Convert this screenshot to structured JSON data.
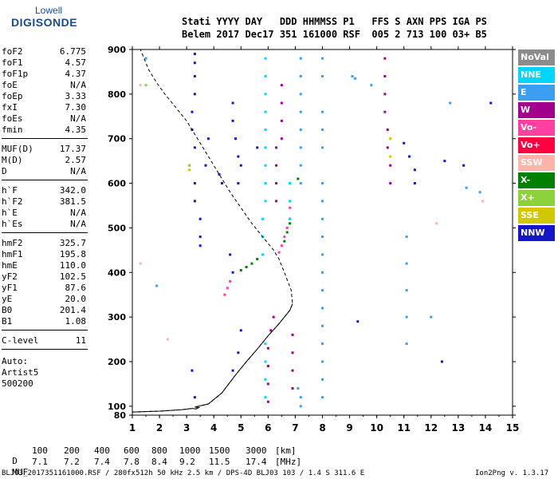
{
  "logo": {
    "line1": "Lowell",
    "line2": "DIGISONDE"
  },
  "header": {
    "line1": "Stati YYYY DAY   DDD HHMMSS P1   FFS S AXN PPS IGA PS",
    "line2": "Belem 2017 Dec17 351 161000 RSF  005 2 713 100 03+ B5"
  },
  "params": {
    "group1": [
      {
        "k": "foF2",
        "v": "6.775"
      },
      {
        "k": "foF1",
        "v": "4.57"
      },
      {
        "k": "foF1p",
        "v": "4.37"
      },
      {
        "k": "foE",
        "v": "N/A"
      },
      {
        "k": "foEp",
        "v": "3.33"
      },
      {
        "k": "fxI",
        "v": "7.30"
      },
      {
        "k": "foEs",
        "v": "N/A"
      },
      {
        "k": "fmin",
        "v": "4.35"
      }
    ],
    "group2": [
      {
        "k": "MUF(D)",
        "v": "17.37"
      },
      {
        "k": "M(D)",
        "v": "2.57"
      },
      {
        "k": "D",
        "v": "N/A"
      }
    ],
    "group3": [
      {
        "k": "h`F",
        "v": "342.0"
      },
      {
        "k": "h`F2",
        "v": "381.5"
      },
      {
        "k": "h`E",
        "v": "N/A"
      },
      {
        "k": "h`Es",
        "v": "N/A"
      }
    ],
    "group4": [
      {
        "k": "hmF2",
        "v": "325.7"
      },
      {
        "k": "hmF1",
        "v": "195.8"
      },
      {
        "k": "hmE",
        "v": "110.0"
      },
      {
        "k": "yF2",
        "v": "102.5"
      },
      {
        "k": "yF1",
        "v": "87.6"
      },
      {
        "k": "yE",
        "v": "20.0"
      },
      {
        "k": "B0",
        "v": "201.4"
      },
      {
        "k": "B1",
        "v": "1.08"
      }
    ],
    "group5": [
      {
        "k": "C-level",
        "v": "11"
      }
    ],
    "auto": [
      "Auto:",
      "Artist5",
      "500200"
    ]
  },
  "legend": [
    {
      "label": "NoVal",
      "color": "#8c8c8c"
    },
    {
      "label": "NNE",
      "color": "#00d4ff"
    },
    {
      "label": "E",
      "color": "#3a9ff0"
    },
    {
      "label": "W",
      "color": "#a0008c"
    },
    {
      "label": "Vo-",
      "color": "#ff40a0"
    },
    {
      "label": "Vo+",
      "color": "#ff0040"
    },
    {
      "label": "SSW",
      "color": "#ffb4a8"
    },
    {
      "label": "X-",
      "color": "#008000"
    },
    {
      "label": "X+",
      "color": "#8cd23c"
    },
    {
      "label": "SSE",
      "color": "#d2c800"
    },
    {
      "label": "NNW",
      "color": "#1414c8"
    }
  ],
  "chart_data": {
    "type": "scatter",
    "xlim": [
      1,
      15
    ],
    "ylim": [
      80,
      900
    ],
    "xticks": [
      "1",
      "2",
      "3",
      "4",
      "5",
      "6",
      "7",
      "8",
      "9",
      "10",
      "11",
      "12",
      "13",
      "14",
      "15"
    ],
    "yticks": [
      "80",
      "100",
      "200",
      "300",
      "400",
      "500",
      "600",
      "700",
      "800",
      "900"
    ],
    "series": [
      {
        "name": "W",
        "color": "#a0008c",
        "points": [
          [
            6.0,
            110
          ],
          [
            6.0,
            150
          ],
          [
            6.0,
            190
          ],
          [
            6.0,
            230
          ],
          [
            6.1,
            270
          ],
          [
            6.2,
            300
          ],
          [
            6.3,
            560
          ],
          [
            6.3,
            600
          ],
          [
            6.3,
            640
          ],
          [
            6.3,
            680
          ],
          [
            6.5,
            700
          ],
          [
            6.5,
            740
          ],
          [
            6.5,
            780
          ],
          [
            6.5,
            820
          ],
          [
            6.9,
            140
          ],
          [
            6.9,
            180
          ],
          [
            6.9,
            220
          ],
          [
            6.9,
            260
          ],
          [
            10.3,
            880
          ],
          [
            10.3,
            840
          ],
          [
            10.3,
            800
          ],
          [
            10.3,
            760
          ],
          [
            10.4,
            720
          ],
          [
            10.4,
            680
          ],
          [
            10.5,
            640
          ],
          [
            10.5,
            600
          ]
        ]
      },
      {
        "name": "Vo-",
        "color": "#ff40a0",
        "points": [
          [
            4.4,
            350
          ],
          [
            4.5,
            365
          ],
          [
            4.6,
            380
          ],
          [
            6.4,
            445
          ],
          [
            6.5,
            460
          ],
          [
            6.6,
            480
          ],
          [
            6.7,
            500
          ],
          [
            6.8,
            520
          ],
          [
            6.8,
            545
          ]
        ]
      },
      {
        "name": "X-",
        "color": "#008000",
        "points": [
          [
            5.0,
            405
          ],
          [
            5.2,
            412
          ],
          [
            5.4,
            420
          ],
          [
            5.6,
            430
          ],
          [
            6.6,
            470
          ],
          [
            6.7,
            490
          ],
          [
            6.8,
            510
          ],
          [
            7.1,
            610
          ]
        ]
      },
      {
        "name": "NNE",
        "color": "#00d4ff",
        "points": [
          [
            5.9,
            880
          ],
          [
            5.9,
            840
          ],
          [
            5.9,
            800
          ],
          [
            5.9,
            760
          ],
          [
            5.9,
            720
          ],
          [
            5.9,
            680
          ],
          [
            5.9,
            640
          ],
          [
            5.9,
            600
          ],
          [
            5.9,
            560
          ],
          [
            5.8,
            520
          ],
          [
            5.8,
            480
          ],
          [
            5.8,
            440
          ],
          [
            5.9,
            240
          ],
          [
            5.9,
            200
          ],
          [
            5.9,
            160
          ],
          [
            5.9,
            120
          ],
          [
            6.8,
            600
          ],
          [
            6.8,
            560
          ],
          [
            6.8,
            520
          ]
        ]
      },
      {
        "name": "E",
        "color": "#3a9ff0",
        "points": [
          [
            7.2,
            880
          ],
          [
            7.2,
            840
          ],
          [
            7.2,
            800
          ],
          [
            7.2,
            760
          ],
          [
            7.2,
            720
          ],
          [
            7.2,
            680
          ],
          [
            7.2,
            640
          ],
          [
            7.2,
            600
          ],
          [
            7.2,
            100
          ],
          [
            7.2,
            120
          ],
          [
            7.1,
            140
          ],
          [
            8.0,
            880
          ],
          [
            8.0,
            840
          ],
          [
            8.0,
            760
          ],
          [
            8.0,
            720
          ],
          [
            8.0,
            680
          ],
          [
            8.0,
            600
          ],
          [
            8.0,
            560
          ],
          [
            8.0,
            520
          ],
          [
            8.0,
            480
          ],
          [
            8.0,
            440
          ],
          [
            8.0,
            400
          ],
          [
            8.0,
            360
          ],
          [
            8.0,
            320
          ],
          [
            8.0,
            280
          ],
          [
            8.0,
            240
          ],
          [
            8.0,
            200
          ],
          [
            8.0,
            160
          ],
          [
            8.0,
            120
          ],
          [
            9.1,
            840
          ],
          [
            9.2,
            835
          ],
          [
            9.8,
            820
          ],
          [
            11.1,
            240
          ],
          [
            11.1,
            300
          ],
          [
            11.1,
            360
          ],
          [
            11.1,
            420
          ],
          [
            11.1,
            480
          ],
          [
            12.7,
            780
          ],
          [
            13.3,
            590
          ],
          [
            13.8,
            580
          ],
          [
            12.0,
            300
          ],
          [
            1.5,
            880
          ],
          [
            1.9,
            370
          ]
        ]
      },
      {
        "name": "NNW",
        "color": "#1414c8",
        "points": [
          [
            3.3,
            890
          ],
          [
            3.3,
            870
          ],
          [
            3.3,
            840
          ],
          [
            3.3,
            800
          ],
          [
            3.2,
            760
          ],
          [
            3.2,
            720
          ],
          [
            3.3,
            680
          ],
          [
            3.3,
            600
          ],
          [
            3.3,
            560
          ],
          [
            3.5,
            520
          ],
          [
            3.5,
            480
          ],
          [
            3.5,
            460
          ],
          [
            3.7,
            640
          ],
          [
            3.8,
            700
          ],
          [
            4.2,
            620
          ],
          [
            4.3,
            600
          ],
          [
            4.7,
            780
          ],
          [
            4.7,
            740
          ],
          [
            4.8,
            700
          ],
          [
            4.9,
            660
          ],
          [
            5.0,
            640
          ],
          [
            4.9,
            600
          ],
          [
            5.6,
            680
          ],
          [
            4.7,
            400
          ],
          [
            4.6,
            440
          ],
          [
            5.0,
            270
          ],
          [
            4.9,
            220
          ],
          [
            4.7,
            180
          ],
          [
            3.2,
            180
          ],
          [
            3.3,
            120
          ],
          [
            9.3,
            290
          ],
          [
            11.0,
            690
          ],
          [
            11.2,
            660
          ],
          [
            11.4,
            630
          ],
          [
            11.4,
            600
          ],
          [
            12.5,
            650
          ],
          [
            12.4,
            200
          ],
          [
            14.2,
            780
          ],
          [
            13.2,
            640
          ]
        ]
      },
      {
        "name": "SSW",
        "color": "#ffb4a8",
        "points": [
          [
            1.3,
            820
          ],
          [
            1.3,
            420
          ],
          [
            2.3,
            250
          ],
          [
            12.2,
            510
          ],
          [
            13.9,
            560
          ]
        ]
      },
      {
        "name": "X+",
        "color": "#8cd23c",
        "points": [
          [
            1.5,
            820
          ],
          [
            3.1,
            640
          ]
        ]
      },
      {
        "name": "SSE",
        "color": "#d2c800",
        "points": [
          [
            10.5,
            700
          ],
          [
            10.5,
            660
          ],
          [
            3.1,
            630
          ]
        ]
      }
    ],
    "ionogram_trace": [
      [
        1.0,
        87
      ],
      [
        2.0,
        89
      ],
      [
        2.8,
        92
      ],
      [
        3.2,
        95
      ],
      [
        3.35,
        94
      ],
      [
        3.45,
        97
      ],
      [
        3.3,
        98
      ],
      [
        3.8,
        105
      ],
      [
        4.3,
        130
      ],
      [
        4.8,
        170
      ],
      [
        5.2,
        200
      ],
      [
        5.6,
        228
      ],
      [
        6.0,
        258
      ],
      [
        6.4,
        285
      ],
      [
        6.8,
        315
      ],
      [
        6.9,
        330
      ],
      [
        6.85,
        360
      ],
      [
        6.6,
        400
      ],
      [
        6.4,
        430
      ],
      [
        6.2,
        450
      ],
      [
        5.8,
        480
      ],
      [
        5.4,
        510
      ],
      [
        5.0,
        545
      ],
      [
        4.6,
        580
      ],
      [
        4.2,
        620
      ],
      [
        3.8,
        660
      ],
      [
        3.4,
        700
      ],
      [
        3.0,
        740
      ],
      [
        2.6,
        770
      ],
      [
        2.2,
        800
      ],
      [
        1.9,
        825
      ],
      [
        1.6,
        855
      ],
      [
        1.4,
        885
      ],
      [
        1.3,
        900
      ]
    ],
    "ionogram_trace_real": [
      [
        1.0,
        87
      ],
      [
        2.0,
        89
      ],
      [
        2.8,
        92
      ],
      [
        3.2,
        95
      ],
      [
        3.35,
        94
      ],
      [
        3.45,
        97
      ],
      [
        3.3,
        98
      ],
      [
        3.8,
        105
      ],
      [
        4.3,
        130
      ],
      [
        4.8,
        170
      ],
      [
        5.2,
        200
      ],
      [
        5.6,
        228
      ],
      [
        6.0,
        258
      ],
      [
        6.4,
        285
      ],
      [
        6.8,
        315
      ],
      [
        6.9,
        330
      ]
    ]
  },
  "muf_table": {
    "d_label": "D",
    "d_values": [
      "100",
      "200",
      "400",
      "600",
      "800",
      "1000",
      "1500",
      "3000"
    ],
    "d_unit": "[km]",
    "muf_label": "MUF",
    "muf_values": [
      "7.1",
      "7.2",
      "7.4",
      "7.8",
      "8.4",
      "9.2",
      "11.5",
      "17.4"
    ],
    "muf_unit": "[MHz]"
  },
  "footer": {
    "left": "BLJ03_2017351161000.RSF / 280fx512h 50 kHz 2.5 km / DPS-4D BLJ03 103 / 1.4 S 311.6 E",
    "right": "Ion2Png v. 1.3.17"
  }
}
